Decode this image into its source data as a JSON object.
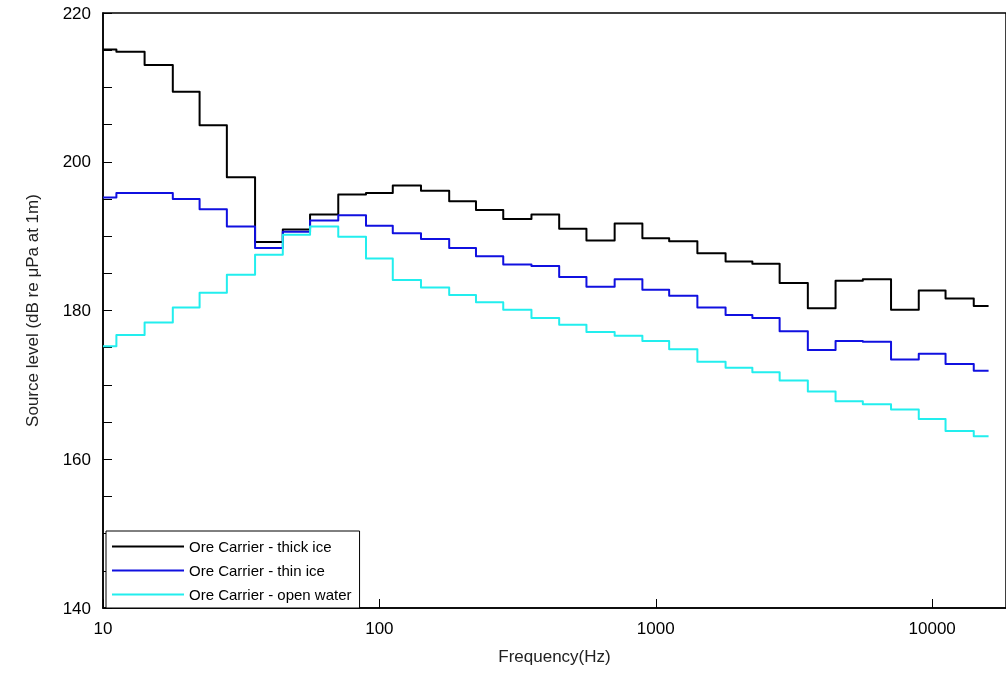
{
  "chart_data": {
    "type": "step",
    "xlabel": "Frequency(Hz)",
    "ylabel": "Source level (dB re μPa at 1m)",
    "x": [
      10,
      12.5,
      16,
      20,
      25,
      31.5,
      40,
      50,
      63,
      80,
      100,
      125,
      160,
      200,
      250,
      315,
      400,
      500,
      630,
      800,
      1000,
      1250,
      1600,
      2000,
      2500,
      3150,
      4000,
      5000,
      6300,
      8000,
      10000,
      12500,
      16000
    ],
    "series": [
      {
        "name": "Ore Carrier - thick ice",
        "color": "#000000",
        "values": [
          215.1,
          214.8,
          213.0,
          209.4,
          204.9,
          197.9,
          189.2,
          190.9,
          192.9,
          195.6,
          195.8,
          196.8,
          196.1,
          194.7,
          193.5,
          192.3,
          192.9,
          191.0,
          189.4,
          191.7,
          189.7,
          189.3,
          187.7,
          186.6,
          186.3,
          183.7,
          180.3,
          184.0,
          184.2,
          180.1,
          182.7,
          181.6,
          180.6
        ]
      },
      {
        "name": "Ore Carrier - thin ice",
        "color": "#1010e0",
        "values": [
          195.2,
          195.8,
          195.8,
          195.0,
          193.6,
          191.3,
          188.4,
          190.6,
          192.1,
          192.8,
          191.4,
          190.4,
          189.6,
          188.4,
          187.3,
          186.2,
          186.0,
          184.5,
          183.2,
          184.2,
          182.8,
          182.0,
          180.4,
          179.4,
          179.0,
          177.2,
          174.7,
          175.9,
          175.8,
          173.4,
          174.2,
          172.8,
          171.9
        ]
      },
      {
        "name": "Ore Carrier - open water",
        "color": "#22eeee",
        "values": [
          175.2,
          176.7,
          178.4,
          180.4,
          182.4,
          184.8,
          187.5,
          190.2,
          191.3,
          189.9,
          187.0,
          184.1,
          183.1,
          182.1,
          181.1,
          180.1,
          179.0,
          178.1,
          177.1,
          176.6,
          175.9,
          174.8,
          173.1,
          172.3,
          171.7,
          170.6,
          169.1,
          167.8,
          167.4,
          166.7,
          165.4,
          163.8,
          163.1
        ]
      }
    ],
    "xlim": [
      10,
      18500
    ],
    "ylim": [
      140,
      220
    ],
    "xticks": [
      10,
      100,
      1000,
      10000
    ],
    "yticks": [
      140,
      {
        "value": 145,
        "label": null
      },
      {
        "value": 150,
        "label": null
      },
      {
        "value": 155,
        "label": null
      },
      160,
      {
        "value": 165,
        "label": null
      },
      {
        "value": 170,
        "label": null
      },
      {
        "value": 175,
        "label": null
      },
      180,
      {
        "value": 185,
        "label": null
      },
      {
        "value": 190,
        "label": null
      },
      {
        "value": 195,
        "label": null
      },
      200,
      {
        "value": 205,
        "label": null
      },
      {
        "value": 210,
        "label": null
      },
      {
        "value": 215,
        "label": null
      },
      220
    ],
    "log": "x",
    "grid": false,
    "legend": "bottom left",
    "line_style": "solid",
    "marker": "none"
  }
}
